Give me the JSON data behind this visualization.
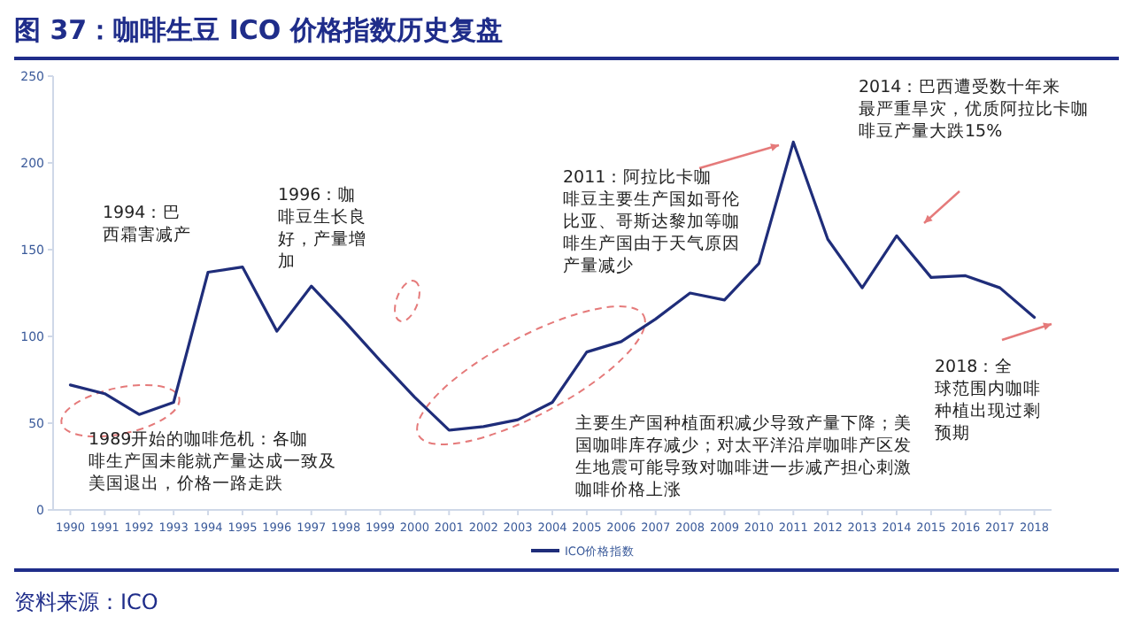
{
  "chart_data": {
    "type": "line",
    "title": "图 37：咖啡生豆 ICO 价格指数历史复盘",
    "x": [
      1990,
      1991,
      1992,
      1993,
      1994,
      1995,
      1996,
      1997,
      1998,
      1999,
      2000,
      2001,
      2002,
      2003,
      2004,
      2005,
      2006,
      2007,
      2008,
      2009,
      2010,
      2011,
      2012,
      2013,
      2014,
      2015,
      2016,
      2017,
      2018
    ],
    "series": [
      {
        "name": "ICO价格指数",
        "color": "#1f2d7a",
        "values": [
          72,
          67,
          55,
          62,
          137,
          140,
          103,
          129,
          108,
          86,
          65,
          46,
          48,
          52,
          62,
          91,
          97,
          110,
          125,
          121,
          142,
          212,
          156,
          128,
          158,
          134,
          135,
          128,
          111
        ]
      }
    ],
    "xlim": [
      1989.5,
      2018.5
    ],
    "xticks": [
      1990,
      1991,
      1992,
      1993,
      1994,
      1995,
      1996,
      1997,
      1998,
      1999,
      2000,
      2001,
      2002,
      2003,
      2004,
      2005,
      2006,
      2007,
      2008,
      2009,
      2010,
      2011,
      2012,
      2013,
      2014,
      2015,
      2016,
      2017,
      2018
    ],
    "ylim": [
      0,
      250
    ],
    "yticks": [
      0,
      50,
      100,
      150,
      200,
      250
    ],
    "grid": false,
    "legend": "bottom",
    "marker": "none",
    "line_style": "solid",
    "annotations": [
      "1994：巴西霜害减产",
      "1996：咖啡豆生长良好，产量增加",
      "1989开始的咖啡危机：各咖啡生产国未能就产量达成一致及美国退出，价格一路走跌",
      "2011：阿拉比卡咖啡豆主要生产国如哥伦比亚、哥斯达黎加等咖啡生产国由于天气原因产量减少",
      "2014：巴西遭受数十年来最严重旱灾，优质阿拉比卡咖啡豆产量大跌15%",
      "2018：全球范围内咖啡种植出现过剩预期",
      "主要生产国种植面积减少导致产量下降；美国咖啡库存减少；对太平洋沿岸咖啡产区发生地震可能导致对咖啡进一步减产担心刺激咖啡价格上涨",
      "资料来源：ICO"
    ]
  }
}
